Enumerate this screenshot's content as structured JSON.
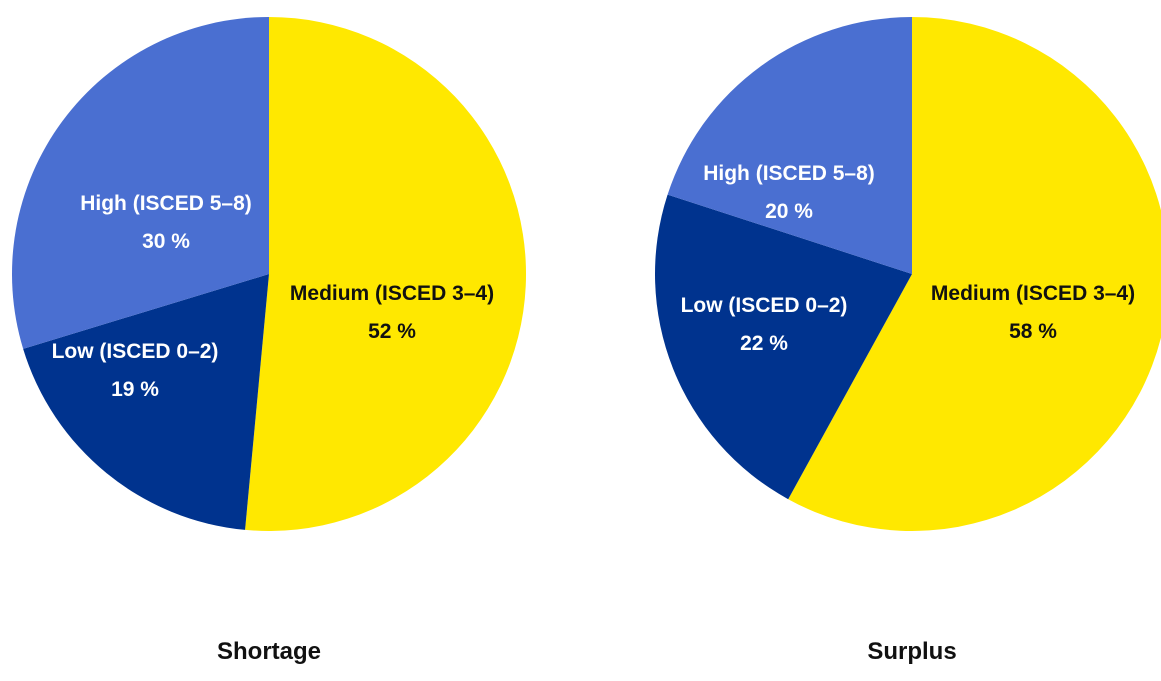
{
  "chart_data": [
    {
      "type": "pie",
      "title": "Shortage",
      "slices": [
        {
          "label": "Medium (ISCED 3–4)",
          "value": 52,
          "value_label": "52 %",
          "color": "#FFE800",
          "text_color": "#111111"
        },
        {
          "label": "Low (ISCED 0–2)",
          "value": 19,
          "value_label": "19 %",
          "color": "#00338E",
          "text_color": "#FFFFFF"
        },
        {
          "label": "High (ISCED 5–8)",
          "value": 30,
          "value_label": "30 %",
          "color": "#4A6FD1",
          "text_color": "#FFFFFF"
        }
      ]
    },
    {
      "type": "pie",
      "title": "Surplus",
      "slices": [
        {
          "label": "Medium (ISCED 3–4)",
          "value": 58,
          "value_label": "58 %",
          "color": "#FFE800",
          "text_color": "#111111"
        },
        {
          "label": "Low (ISCED 0–2)",
          "value": 22,
          "value_label": "22 %",
          "color": "#00338E",
          "text_color": "#FFFFFF"
        },
        {
          "label": "High (ISCED 5–8)",
          "value": 20,
          "value_label": "20 %",
          "color": "#4A6FD1",
          "text_color": "#FFFFFF"
        }
      ]
    }
  ]
}
